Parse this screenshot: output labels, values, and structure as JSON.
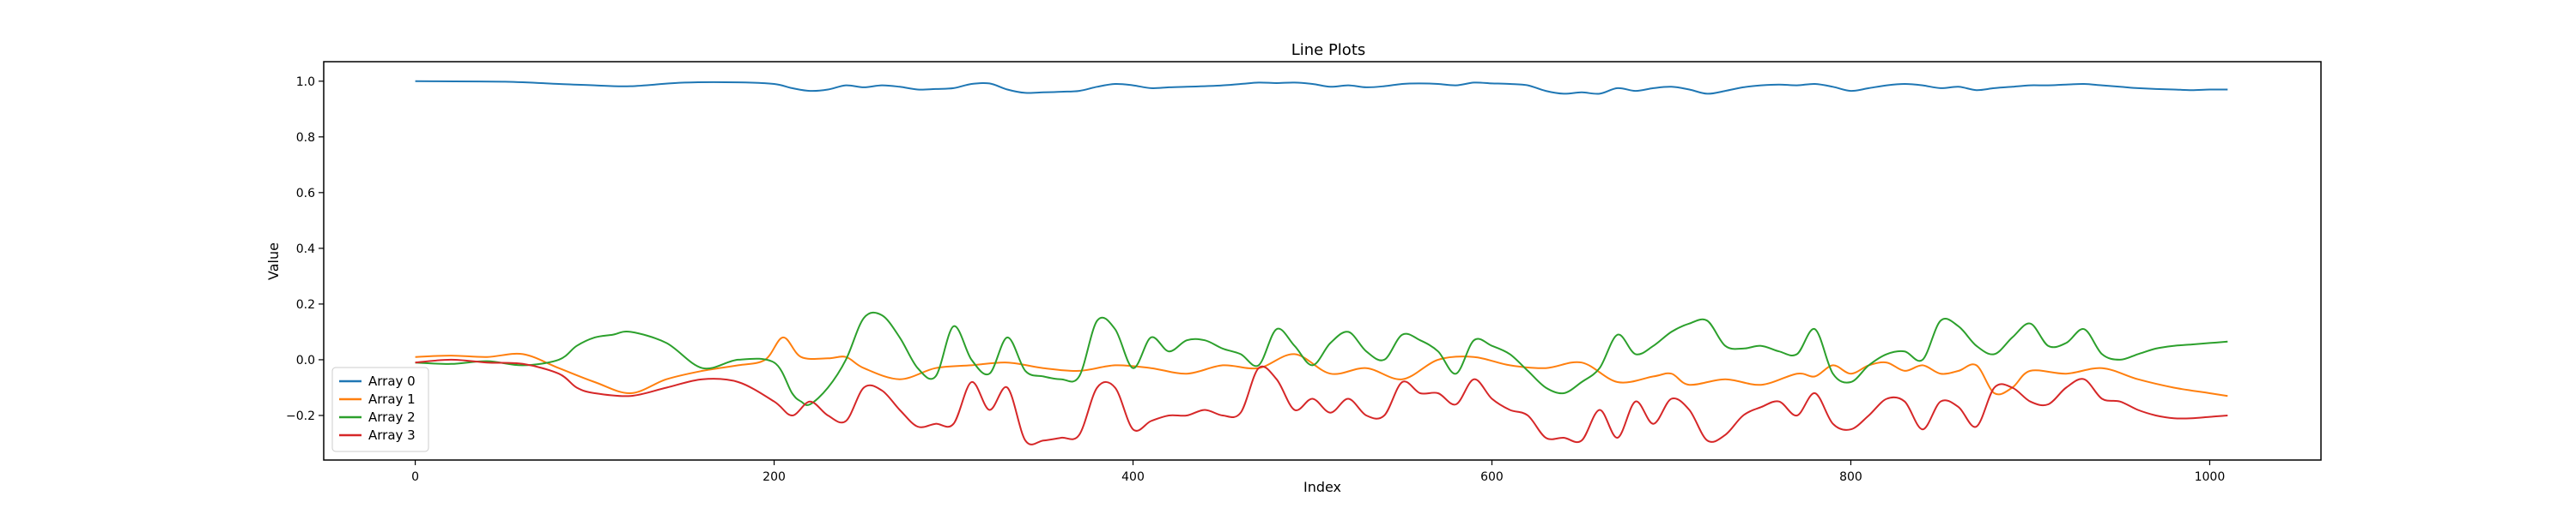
{
  "chart_data": {
    "type": "line",
    "title": "Line Plots",
    "xlabel": "Index",
    "ylabel": "Value",
    "xlim": [
      -51,
      1062
    ],
    "ylim": [
      -0.36,
      1.07
    ],
    "xticks": [
      0,
      200,
      400,
      600,
      800,
      1000
    ],
    "yticks": [
      -0.2,
      0.0,
      0.2,
      0.4,
      0.6,
      0.8,
      1.0
    ],
    "ytick_labels": [
      "−0.2",
      "0.0",
      "0.2",
      "0.4",
      "0.6",
      "0.8",
      "1.0"
    ],
    "legend_position": "lower-left",
    "grid": false,
    "series": [
      {
        "name": "Array 0",
        "color": "#1f77b4",
        "x": [
          0,
          50,
          80,
          100,
          120,
          150,
          180,
          200,
          210,
          220,
          230,
          240,
          250,
          260,
          270,
          280,
          290,
          300,
          310,
          320,
          330,
          340,
          350,
          360,
          370,
          380,
          390,
          400,
          410,
          420,
          430,
          440,
          450,
          460,
          470,
          480,
          490,
          500,
          510,
          520,
          530,
          540,
          550,
          560,
          570,
          580,
          590,
          600,
          610,
          620,
          630,
          640,
          650,
          660,
          670,
          680,
          690,
          700,
          710,
          720,
          730,
          740,
          750,
          760,
          770,
          780,
          790,
          800,
          810,
          820,
          830,
          840,
          850,
          860,
          870,
          880,
          890,
          900,
          910,
          920,
          930,
          940,
          950,
          960,
          970,
          980,
          990,
          1000,
          1010
        ],
        "y": [
          1.0,
          0.998,
          0.99,
          0.985,
          0.982,
          0.995,
          0.996,
          0.99,
          0.975,
          0.965,
          0.97,
          0.985,
          0.978,
          0.985,
          0.98,
          0.97,
          0.972,
          0.975,
          0.99,
          0.992,
          0.97,
          0.958,
          0.96,
          0.962,
          0.965,
          0.98,
          0.99,
          0.985,
          0.975,
          0.978,
          0.98,
          0.982,
          0.985,
          0.99,
          0.995,
          0.993,
          0.995,
          0.99,
          0.98,
          0.985,
          0.978,
          0.982,
          0.99,
          0.992,
          0.99,
          0.985,
          0.995,
          0.992,
          0.99,
          0.985,
          0.965,
          0.955,
          0.96,
          0.955,
          0.975,
          0.965,
          0.975,
          0.98,
          0.97,
          0.955,
          0.965,
          0.978,
          0.985,
          0.988,
          0.985,
          0.99,
          0.98,
          0.965,
          0.975,
          0.985,
          0.99,
          0.985,
          0.975,
          0.98,
          0.968,
          0.975,
          0.98,
          0.985,
          0.985,
          0.988,
          0.99,
          0.985,
          0.98,
          0.975,
          0.972,
          0.97,
          0.968,
          0.97,
          0.97
        ]
      },
      {
        "name": "Array 1",
        "color": "#ff7f0e",
        "x": [
          0,
          20,
          40,
          60,
          80,
          100,
          120,
          140,
          160,
          180,
          195,
          205,
          215,
          230,
          240,
          250,
          270,
          290,
          310,
          330,
          350,
          370,
          390,
          410,
          430,
          450,
          470,
          490,
          510,
          530,
          550,
          570,
          590,
          610,
          630,
          650,
          670,
          690,
          700,
          710,
          730,
          750,
          770,
          780,
          790,
          800,
          810,
          820,
          830,
          840,
          850,
          860,
          870,
          880,
          890,
          900,
          920,
          940,
          960,
          980,
          1000,
          1010
        ],
        "y": [
          0.01,
          0.015,
          0.01,
          0.02,
          -0.03,
          -0.08,
          -0.12,
          -0.07,
          -0.04,
          -0.02,
          0.0,
          0.08,
          0.01,
          0.005,
          0.01,
          -0.03,
          -0.07,
          -0.03,
          -0.02,
          -0.01,
          -0.03,
          -0.04,
          -0.02,
          -0.03,
          -0.05,
          -0.02,
          -0.03,
          0.02,
          -0.05,
          -0.03,
          -0.07,
          0.0,
          0.01,
          -0.02,
          -0.03,
          -0.01,
          -0.08,
          -0.06,
          -0.05,
          -0.09,
          -0.07,
          -0.09,
          -0.05,
          -0.06,
          -0.02,
          -0.05,
          -0.02,
          -0.01,
          -0.04,
          -0.02,
          -0.05,
          -0.04,
          -0.02,
          -0.12,
          -0.1,
          -0.04,
          -0.05,
          -0.03,
          -0.07,
          -0.1,
          -0.12,
          -0.13
        ]
      },
      {
        "name": "Array 2",
        "color": "#2ca02c",
        "x": [
          0,
          20,
          40,
          60,
          80,
          90,
          100,
          110,
          120,
          140,
          160,
          180,
          200,
          210,
          215,
          220,
          230,
          240,
          250,
          260,
          270,
          280,
          290,
          300,
          310,
          320,
          330,
          340,
          350,
          360,
          370,
          380,
          390,
          400,
          410,
          420,
          430,
          440,
          450,
          460,
          470,
          480,
          490,
          500,
          510,
          520,
          530,
          540,
          550,
          560,
          570,
          580,
          590,
          600,
          610,
          620,
          630,
          640,
          650,
          660,
          670,
          680,
          690,
          700,
          710,
          720,
          730,
          740,
          750,
          760,
          770,
          780,
          790,
          800,
          810,
          820,
          830,
          840,
          850,
          860,
          870,
          880,
          890,
          900,
          910,
          920,
          930,
          940,
          950,
          960,
          970,
          980,
          990,
          1000,
          1010
        ],
        "y": [
          -0.01,
          -0.015,
          -0.005,
          -0.02,
          0.0,
          0.05,
          0.08,
          0.09,
          0.1,
          0.06,
          -0.03,
          0.0,
          -0.01,
          -0.12,
          -0.15,
          -0.16,
          -0.1,
          0.0,
          0.15,
          0.16,
          0.08,
          -0.03,
          -0.06,
          0.12,
          0.0,
          -0.05,
          0.08,
          -0.04,
          -0.06,
          -0.07,
          -0.06,
          0.14,
          0.11,
          -0.03,
          0.08,
          0.03,
          0.07,
          0.07,
          0.04,
          0.02,
          -0.02,
          0.11,
          0.05,
          -0.02,
          0.06,
          0.1,
          0.03,
          0.0,
          0.09,
          0.07,
          0.03,
          -0.05,
          0.07,
          0.05,
          0.02,
          -0.04,
          -0.1,
          -0.12,
          -0.08,
          -0.03,
          0.09,
          0.02,
          0.05,
          0.1,
          0.13,
          0.14,
          0.05,
          0.04,
          0.05,
          0.03,
          0.02,
          0.11,
          -0.05,
          -0.08,
          -0.02,
          0.02,
          0.03,
          0.0,
          0.14,
          0.12,
          0.05,
          0.02,
          0.08,
          0.13,
          0.05,
          0.06,
          0.11,
          0.02,
          0.0,
          0.02,
          0.04,
          0.05,
          0.055,
          0.06,
          0.065
        ]
      },
      {
        "name": "Array 3",
        "color": "#d62728",
        "x": [
          0,
          20,
          40,
          60,
          80,
          90,
          100,
          120,
          140,
          160,
          180,
          200,
          210,
          220,
          230,
          240,
          250,
          260,
          270,
          280,
          290,
          300,
          310,
          320,
          330,
          340,
          350,
          360,
          370,
          380,
          390,
          400,
          410,
          420,
          430,
          440,
          450,
          460,
          470,
          480,
          490,
          500,
          510,
          520,
          530,
          540,
          550,
          560,
          570,
          580,
          590,
          600,
          610,
          620,
          630,
          640,
          650,
          660,
          670,
          680,
          690,
          700,
          710,
          720,
          730,
          740,
          750,
          760,
          770,
          780,
          790,
          800,
          810,
          820,
          830,
          840,
          850,
          860,
          870,
          880,
          890,
          900,
          910,
          920,
          930,
          940,
          950,
          960,
          970,
          980,
          990,
          1000,
          1010
        ],
        "y": [
          -0.01,
          0.0,
          -0.01,
          -0.015,
          -0.05,
          -0.1,
          -0.12,
          -0.13,
          -0.1,
          -0.07,
          -0.08,
          -0.15,
          -0.2,
          -0.15,
          -0.2,
          -0.22,
          -0.1,
          -0.11,
          -0.18,
          -0.24,
          -0.23,
          -0.23,
          -0.08,
          -0.18,
          -0.1,
          -0.29,
          -0.29,
          -0.28,
          -0.27,
          -0.1,
          -0.1,
          -0.25,
          -0.22,
          -0.2,
          -0.2,
          -0.18,
          -0.2,
          -0.19,
          -0.03,
          -0.07,
          -0.18,
          -0.14,
          -0.19,
          -0.14,
          -0.2,
          -0.2,
          -0.08,
          -0.12,
          -0.12,
          -0.16,
          -0.07,
          -0.14,
          -0.18,
          -0.2,
          -0.28,
          -0.28,
          -0.29,
          -0.18,
          -0.28,
          -0.15,
          -0.23,
          -0.14,
          -0.18,
          -0.29,
          -0.27,
          -0.2,
          -0.17,
          -0.15,
          -0.2,
          -0.12,
          -0.23,
          -0.25,
          -0.2,
          -0.14,
          -0.15,
          -0.25,
          -0.15,
          -0.17,
          -0.24,
          -0.1,
          -0.1,
          -0.15,
          -0.16,
          -0.1,
          -0.07,
          -0.14,
          -0.15,
          -0.18,
          -0.2,
          -0.21,
          -0.21,
          -0.205,
          -0.2
        ]
      }
    ]
  }
}
